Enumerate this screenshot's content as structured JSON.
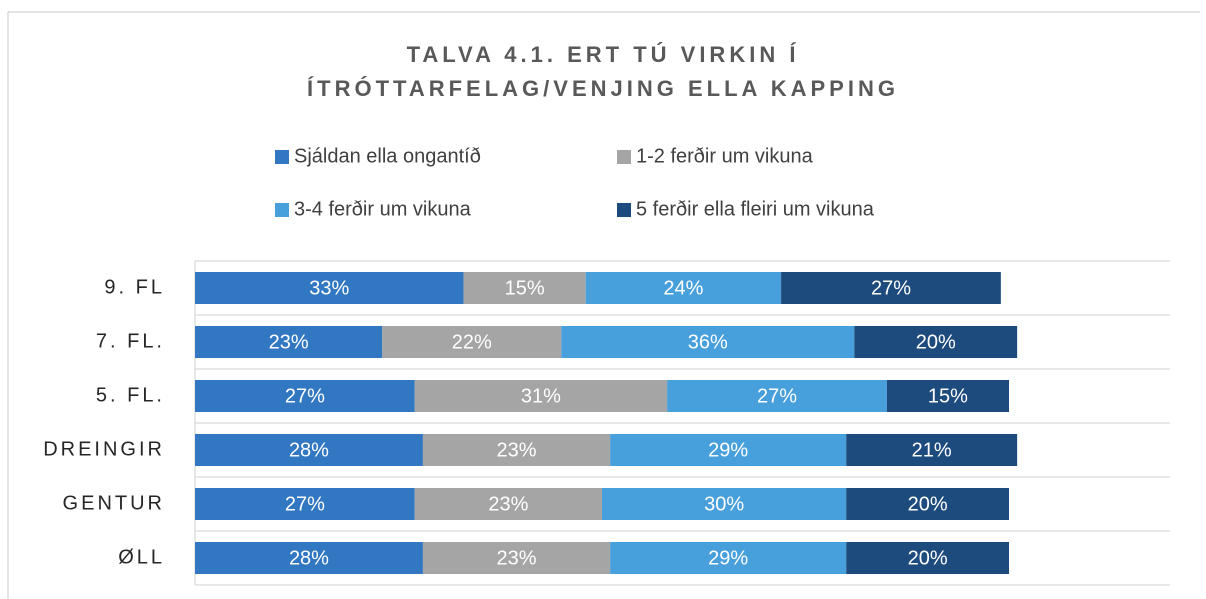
{
  "chart_data": {
    "type": "stacked-bar-horizontal",
    "title": "TALVA 4.1. ERT TÚ VIRKIN Í ÍTRÓTTARFELAG/VENJING ELLA KAPPING",
    "categories": [
      "9. FL",
      "7. FL.",
      "5. FL.",
      "DREINGIR",
      "GENTUR",
      "ØLL"
    ],
    "series": [
      {
        "name": "Sjáldan ella ongantíð",
        "color": "#3277c1",
        "values": [
          33,
          23,
          27,
          28,
          27,
          28
        ],
        "value_labels": [
          "33%",
          "23%",
          "27%",
          "28%",
          "27%",
          "28%"
        ]
      },
      {
        "name": "1-2 ferðir um vikuna",
        "color": "#a5a5a5",
        "values": [
          15,
          22,
          31,
          23,
          23,
          23
        ],
        "value_labels": [
          "15%",
          "22%",
          "31%",
          "23%",
          "23%",
          "23%"
        ]
      },
      {
        "name": "3-4 ferðir um vikuna",
        "color": "#479fdc",
        "values": [
          24,
          36,
          27,
          29,
          30,
          29
        ],
        "value_labels": [
          "24%",
          "36%",
          "27%",
          "29%",
          "30%",
          "29%"
        ]
      },
      {
        "name": "5 ferðir ella fleiri um vikuna",
        "color": "#1d4b7d",
        "values": [
          27,
          20,
          15,
          21,
          20,
          20
        ],
        "value_labels": [
          "27%",
          "20%",
          "15%",
          "21%",
          "20%",
          "20%"
        ]
      }
    ],
    "xlim": [
      0,
      100
    ],
    "grid": true
  }
}
